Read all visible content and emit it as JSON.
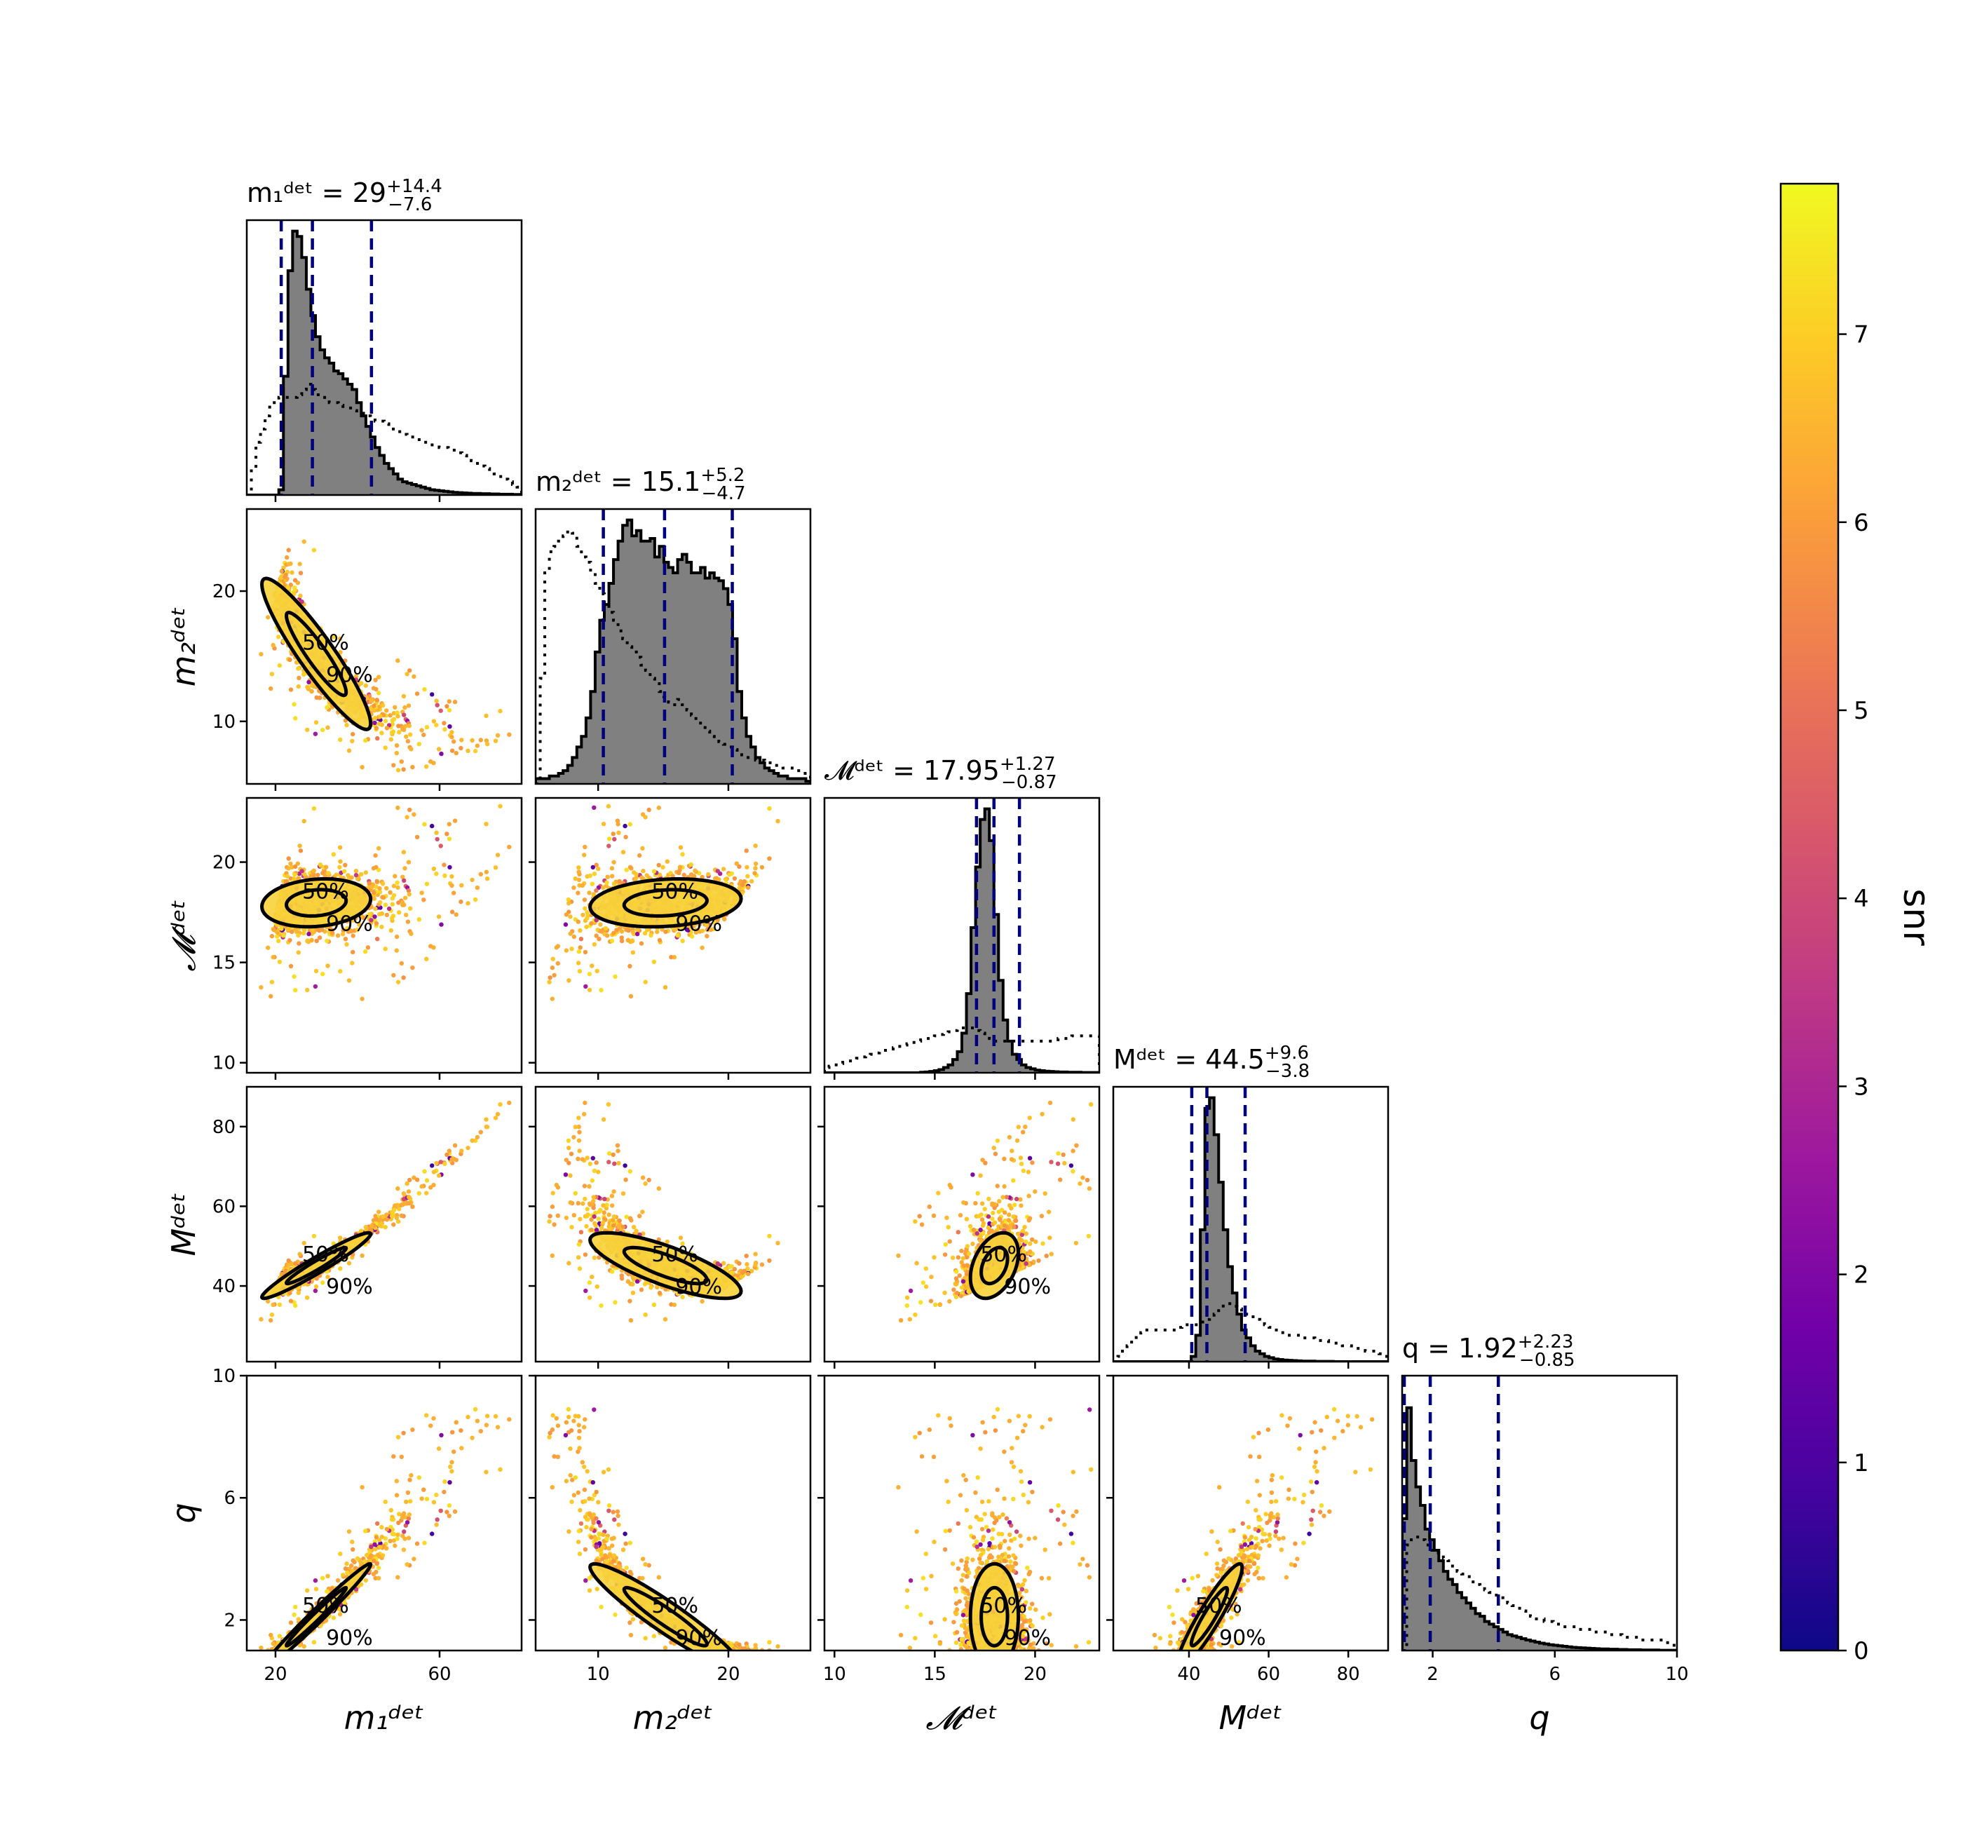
{
  "chart_data": {
    "type": "scatter",
    "layout": "corner",
    "params": [
      {
        "key": "m1",
        "title": "m₁ᵈᵉᵗ = 29",
        "title_err_plus": "+14.4",
        "title_err_minus": "−7.6",
        "label": "m₁ᵈᵉᵗ",
        "range": [
          13,
          80
        ],
        "ticks": [
          20,
          60
        ],
        "quantiles": [
          21.4,
          29,
          43.4
        ],
        "hist_posterior": [
          0,
          0,
          0,
          0,
          0,
          0,
          0,
          0.02,
          0.45,
          0.85,
          1.0,
          0.98,
          0.9,
          0.78,
          0.68,
          0.6,
          0.55,
          0.52,
          0.5,
          0.47,
          0.46,
          0.44,
          0.42,
          0.4,
          0.35,
          0.3,
          0.26,
          0.22,
          0.18,
          0.15,
          0.12,
          0.1,
          0.08,
          0.06,
          0.05,
          0.045,
          0.04,
          0.035,
          0.03,
          0.025,
          0.02,
          0.018,
          0.016,
          0.014,
          0.012,
          0.01,
          0.009,
          0.008,
          0.007,
          0.006,
          0.006,
          0.005,
          0.005,
          0.004,
          0.004,
          0.003,
          0.003,
          0.003,
          0.002,
          0.002
        ],
        "hist_prior": [
          0.0,
          0.1,
          0.2,
          0.25,
          0.3,
          0.34,
          0.36,
          0.37,
          0.37,
          0.37,
          0.37,
          0.38,
          0.4,
          0.42,
          0.4,
          0.38,
          0.37,
          0.36,
          0.35,
          0.35,
          0.34,
          0.33,
          0.33,
          0.32,
          0.31,
          0.31,
          0.3,
          0.29,
          0.28,
          0.28,
          0.27,
          0.26,
          0.25,
          0.24,
          0.23,
          0.22,
          0.22,
          0.21,
          0.2,
          0.2,
          0.19,
          0.19,
          0.18,
          0.18,
          0.17,
          0.17,
          0.16,
          0.15,
          0.14,
          0.13,
          0.12,
          0.11,
          0.1,
          0.09,
          0.08,
          0.07,
          0.06,
          0.05,
          0.04,
          0.03
        ]
      },
      {
        "key": "m2",
        "title": "m₂ᵈᵉᵗ = 15.1",
        "title_err_plus": "+5.2",
        "title_err_minus": "−4.7",
        "label": "m₂ᵈᵉᵗ",
        "range": [
          5.2,
          26.3
        ],
        "ticks": [
          10,
          20
        ],
        "quantiles": [
          10.4,
          15.1,
          20.3
        ],
        "hist_posterior": [
          0.02,
          0.02,
          0.02,
          0.03,
          0.03,
          0.04,
          0.05,
          0.07,
          0.1,
          0.14,
          0.18,
          0.25,
          0.35,
          0.5,
          0.62,
          0.68,
          0.76,
          0.85,
          0.92,
          0.98,
          1.0,
          0.94,
          0.96,
          0.92,
          0.92,
          0.93,
          0.86,
          0.9,
          0.84,
          0.82,
          0.8,
          0.85,
          0.87,
          0.84,
          0.8,
          0.8,
          0.82,
          0.78,
          0.8,
          0.78,
          0.77,
          0.74,
          0.68,
          0.55,
          0.35,
          0.25,
          0.18,
          0.14,
          0.1,
          0.08,
          0.06,
          0.05,
          0.04,
          0.03,
          0.03,
          0.02,
          0.02,
          0.02,
          0.02,
          0.01
        ],
        "hist_prior": [
          0.0,
          0.4,
          0.8,
          0.88,
          0.9,
          0.92,
          0.94,
          0.96,
          0.95,
          0.9,
          0.86,
          0.84,
          0.8,
          0.76,
          0.72,
          0.68,
          0.65,
          0.62,
          0.58,
          0.55,
          0.52,
          0.5,
          0.48,
          0.45,
          0.43,
          0.4,
          0.38,
          0.35,
          0.33,
          0.31,
          0.3,
          0.32,
          0.3,
          0.28,
          0.26,
          0.24,
          0.22,
          0.2,
          0.18,
          0.17,
          0.16,
          0.15,
          0.14,
          0.13,
          0.12,
          0.11,
          0.1,
          0.1,
          0.09,
          0.09,
          0.08,
          0.08,
          0.07,
          0.07,
          0.06,
          0.06,
          0.05,
          0.05,
          0.04,
          0.04
        ]
      },
      {
        "key": "mc",
        "title": "𝓜ᵈᵉᵗ = 17.95",
        "title_err_plus": "+1.27",
        "title_err_minus": "−0.87",
        "label": "𝓜ᵈᵉᵗ",
        "range": [
          9.5,
          23.2
        ],
        "ticks": [
          10,
          15,
          20
        ],
        "quantiles": [
          17.08,
          17.95,
          19.22
        ],
        "hist_posterior": [
          0,
          0,
          0,
          0,
          0,
          0,
          0,
          0,
          0,
          0,
          0,
          0,
          0,
          0,
          0,
          0,
          0,
          0,
          0,
          0,
          0,
          0.002,
          0.003,
          0.005,
          0.008,
          0.012,
          0.02,
          0.03,
          0.05,
          0.08,
          0.15,
          0.3,
          0.55,
          0.78,
          0.96,
          1.0,
          0.88,
          0.6,
          0.35,
          0.2,
          0.12,
          0.07,
          0.05,
          0.03,
          0.02,
          0.015,
          0.01,
          0.008,
          0.006,
          0.005,
          0.004,
          0.003,
          0.003,
          0.002,
          0.002,
          0.002,
          0.001,
          0.001,
          0.001,
          0.001
        ],
        "hist_prior": [
          0.02,
          0.025,
          0.03,
          0.035,
          0.04,
          0.045,
          0.05,
          0.055,
          0.06,
          0.065,
          0.07,
          0.075,
          0.08,
          0.085,
          0.09,
          0.095,
          0.1,
          0.105,
          0.11,
          0.115,
          0.12,
          0.125,
          0.13,
          0.135,
          0.14,
          0.145,
          0.15,
          0.155,
          0.16,
          0.165,
          0.17,
          0.17,
          0.17,
          0.16,
          0.15,
          0.14,
          0.13,
          0.12,
          0.12,
          0.12,
          0.12,
          0.12,
          0.12,
          0.12,
          0.12,
          0.12,
          0.12,
          0.12,
          0.12,
          0.12,
          0.12,
          0.13,
          0.13,
          0.13,
          0.14,
          0.14,
          0.14,
          0.14,
          0.14,
          0.14
        ]
      },
      {
        "key": "M",
        "title": "Mᵈᵉᵗ = 44.5",
        "title_err_plus": "+9.6",
        "title_err_minus": "−3.8",
        "label": "Mᵈᵉᵗ",
        "range": [
          21,
          90
        ],
        "ticks": [
          40,
          60,
          80
        ],
        "quantiles": [
          40.7,
          44.5,
          54.1
        ],
        "hist_posterior": [
          0,
          0,
          0,
          0,
          0,
          0,
          0,
          0,
          0,
          0,
          0,
          0,
          0,
          0,
          0,
          0,
          0,
          0.02,
          0.1,
          0.5,
          0.96,
          1.0,
          0.86,
          0.68,
          0.5,
          0.36,
          0.26,
          0.18,
          0.12,
          0.09,
          0.06,
          0.04,
          0.03,
          0.02,
          0.015,
          0.01,
          0.008,
          0.006,
          0.005,
          0.004,
          0.003,
          0.002,
          0.002,
          0.002,
          0.001,
          0.001,
          0.001,
          0.001,
          0,
          0,
          0,
          0,
          0,
          0,
          0,
          0,
          0,
          0,
          0,
          0
        ],
        "hist_prior": [
          0.0,
          0.02,
          0.04,
          0.06,
          0.08,
          0.1,
          0.11,
          0.12,
          0.12,
          0.12,
          0.12,
          0.12,
          0.12,
          0.12,
          0.13,
          0.14,
          0.14,
          0.14,
          0.14,
          0.15,
          0.16,
          0.17,
          0.18,
          0.2,
          0.22,
          0.22,
          0.21,
          0.2,
          0.19,
          0.18,
          0.17,
          0.16,
          0.15,
          0.14,
          0.13,
          0.12,
          0.11,
          0.1,
          0.1,
          0.1,
          0.1,
          0.09,
          0.09,
          0.09,
          0.08,
          0.08,
          0.08,
          0.07,
          0.07,
          0.07,
          0.06,
          0.06,
          0.05,
          0.05,
          0.05,
          0.04,
          0.04,
          0.04,
          0.03,
          0.02
        ]
      },
      {
        "key": "q",
        "title": "q = 1.92",
        "title_err_plus": "+2.23",
        "title_err_minus": "−0.85",
        "label": "q",
        "range": [
          1.0,
          10.0
        ],
        "ticks": [
          2,
          6,
          10
        ],
        "tick_labels_y": [
          "2",
          "6",
          "10"
        ],
        "quantiles": [
          1.07,
          1.92,
          4.15
        ],
        "hist_posterior": [
          0.5,
          0.92,
          0.72,
          0.62,
          0.55,
          0.46,
          0.42,
          0.38,
          0.34,
          0.3,
          0.27,
          0.25,
          0.22,
          0.2,
          0.18,
          0.16,
          0.14,
          0.13,
          0.11,
          0.1,
          0.09,
          0.08,
          0.07,
          0.06,
          0.055,
          0.05,
          0.045,
          0.04,
          0.036,
          0.032,
          0.028,
          0.025,
          0.022,
          0.02,
          0.018,
          0.016,
          0.014,
          0.012,
          0.011,
          0.01,
          0.009,
          0.008,
          0.007,
          0.006,
          0.006,
          0.005,
          0.005,
          0.004,
          0.004,
          0.003,
          0.003,
          0.003,
          0.002,
          0.002,
          0.002,
          0.002,
          0.001,
          0.001,
          0.001,
          0.001
        ],
        "hist_prior": [
          0.0,
          0.4,
          0.42,
          0.43,
          0.42,
          0.4,
          0.38,
          0.37,
          0.36,
          0.35,
          0.34,
          0.32,
          0.3,
          0.29,
          0.28,
          0.26,
          0.25,
          0.24,
          0.23,
          0.22,
          0.21,
          0.2,
          0.19,
          0.18,
          0.17,
          0.16,
          0.15,
          0.14,
          0.13,
          0.12,
          0.12,
          0.11,
          0.11,
          0.1,
          0.1,
          0.09,
          0.09,
          0.09,
          0.08,
          0.08,
          0.08,
          0.08,
          0.07,
          0.07,
          0.07,
          0.06,
          0.06,
          0.06,
          0.05,
          0.05,
          0.05,
          0.05,
          0.04,
          0.04,
          0.04,
          0.04,
          0.04,
          0.03,
          0.03,
          0.02
        ]
      }
    ],
    "contour_labels": [
      "50%",
      "90%"
    ],
    "colorbar": {
      "label": "snr",
      "range": [
        0,
        7.8
      ],
      "ticks": [
        0,
        1,
        2,
        3,
        4,
        5,
        6,
        7
      ],
      "colormap": [
        "#0d0887",
        "#46039f",
        "#7201a8",
        "#9c179e",
        "#bd3786",
        "#d8576b",
        "#ed7953",
        "#fb9f3a",
        "#fdca26",
        "#f0f921"
      ]
    },
    "colors": {
      "hist_fill": "#808080",
      "quantile_line": "#00007f",
      "contour": "#000000",
      "contour_fill": "#f7d33c"
    }
  }
}
